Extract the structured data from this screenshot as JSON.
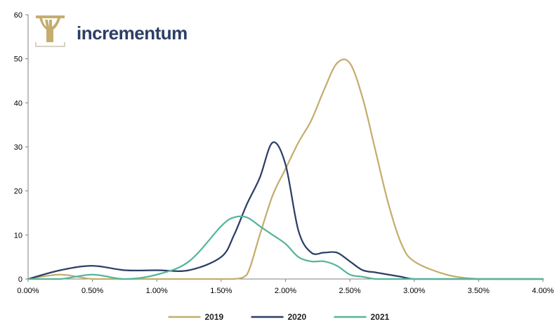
{
  "logo": {
    "brand_text": "incrementum",
    "brand_color": "#2d3e65",
    "icon_color": "#c4ad6e"
  },
  "chart_data": {
    "type": "line",
    "x": [
      0.0,
      0.25,
      0.5,
      0.75,
      1.0,
      1.25,
      1.5,
      1.6,
      1.7,
      1.8,
      1.9,
      2.0,
      2.1,
      2.2,
      2.3,
      2.4,
      2.5,
      2.6,
      2.7,
      2.8,
      2.9,
      3.0,
      3.25,
      3.5,
      3.75,
      4.0
    ],
    "series": [
      {
        "name": "2019",
        "color": "#c4ad6e",
        "values": [
          0,
          1,
          0,
          0,
          0,
          0,
          0,
          0,
          1,
          10,
          19,
          25,
          31,
          36,
          43,
          49,
          49,
          41,
          29,
          17,
          8,
          4,
          1,
          0,
          0,
          0
        ]
      },
      {
        "name": "2020",
        "color": "#2d3e65",
        "values": [
          0,
          2,
          3,
          2,
          2,
          2,
          5,
          10,
          17,
          23,
          31,
          26,
          11,
          6,
          6,
          6,
          4,
          2,
          1.5,
          1,
          0.5,
          0,
          0,
          0,
          0,
          0
        ]
      },
      {
        "name": "2021",
        "color": "#55b69b",
        "values": [
          0,
          0,
          1,
          0,
          1,
          4,
          12,
          14,
          14,
          12,
          10,
          8,
          5,
          4,
          4,
          3,
          1,
          0.5,
          0,
          0,
          0,
          0,
          0,
          0,
          0,
          0
        ]
      }
    ],
    "x_ticks": [
      "0.00%",
      "0.50%",
      "1.00%",
      "1.50%",
      "2.00%",
      "2.50%",
      "3.00%",
      "3.50%",
      "4.00%"
    ],
    "x_tick_values": [
      0,
      0.5,
      1,
      1.5,
      2,
      2.5,
      3,
      3.5,
      4
    ],
    "y_ticks": [
      "0",
      "10",
      "20",
      "30",
      "40",
      "50",
      "60"
    ],
    "y_tick_values": [
      0,
      10,
      20,
      30,
      40,
      50,
      60
    ],
    "xlim": [
      0,
      4
    ],
    "ylim": [
      0,
      60
    ],
    "grid": false,
    "legend_position": "bottom-center",
    "title": "",
    "xlabel": "",
    "ylabel": ""
  }
}
